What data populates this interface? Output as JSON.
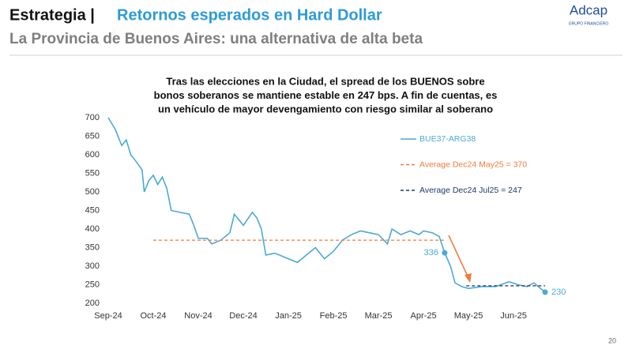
{
  "header": {
    "title_prefix": "Estrategia |",
    "title": "Retornos esperados en Hard Dollar",
    "subtitle": "La Provincia de Buenos Aires: una alternativa de alta beta",
    "logo": "Adcap",
    "logo_sub": "GRUPO FINANCIERO",
    "page": "20"
  },
  "chart_data": {
    "type": "line",
    "title": [
      "Tras las elecciones en la Ciudad, el spread de los BUENOS sobre",
      "bonos soberanos se mantiene estable en 247 bps. A fin de cuentas, es",
      "un vehículo de mayor devengamiento con riesgo similar al soberano"
    ],
    "xlim": [
      0,
      9.7
    ],
    "ylim": [
      200,
      700
    ],
    "xticks": [
      {
        "value": 0,
        "label": "Sep-24"
      },
      {
        "value": 1,
        "label": "Oct-24"
      },
      {
        "value": 2,
        "label": "Nov-24"
      },
      {
        "value": 3,
        "label": "Dec-24"
      },
      {
        "value": 4,
        "label": "Jan-25"
      },
      {
        "value": 5,
        "label": "Feb-25"
      },
      {
        "value": 6,
        "label": "Mar-25"
      },
      {
        "value": 7,
        "label": "Apr-25"
      },
      {
        "value": 8,
        "label": "May-25"
      },
      {
        "value": 9,
        "label": "Jun-25"
      }
    ],
    "yticks": [
      200,
      250,
      300,
      350,
      400,
      450,
      500,
      550,
      600,
      650,
      700
    ],
    "series": [
      {
        "name": "BUE37-ARG38",
        "color": "#4aa9d6",
        "dash": false,
        "x": [
          0,
          0.15,
          0.3,
          0.4,
          0.5,
          0.6,
          0.75,
          0.8,
          0.9,
          1.0,
          1.1,
          1.2,
          1.3,
          1.4,
          1.6,
          1.8,
          1.9,
          2.0,
          2.2,
          2.3,
          2.5,
          2.7,
          2.8,
          3.0,
          3.2,
          3.3,
          3.4,
          3.5,
          3.7,
          4.0,
          4.2,
          4.4,
          4.6,
          4.8,
          5.0,
          5.2,
          5.4,
          5.6,
          5.8,
          6.0,
          6.2,
          6.3,
          6.5,
          6.7,
          6.9,
          7.0,
          7.2,
          7.35,
          7.47,
          7.6,
          7.7,
          7.85,
          8.0,
          8.3,
          8.6,
          8.9,
          9.1,
          9.3,
          9.45,
          9.6,
          9.7
        ],
        "values": [
          700,
          670,
          625,
          640,
          600,
          585,
          560,
          500,
          530,
          545,
          520,
          540,
          510,
          450,
          445,
          440,
          410,
          375,
          375,
          360,
          370,
          390,
          440,
          410,
          445,
          430,
          400,
          330,
          335,
          320,
          310,
          330,
          350,
          320,
          340,
          370,
          385,
          395,
          390,
          385,
          360,
          400,
          385,
          395,
          385,
          395,
          390,
          380,
          336,
          300,
          255,
          245,
          240,
          245,
          245,
          258,
          250,
          245,
          255,
          240,
          230
        ]
      },
      {
        "name": "Average Dec24 May25 = 370",
        "color": "#f07a3c",
        "dash": true,
        "x": [
          1.0,
          7.5
        ],
        "values": [
          370,
          370
        ]
      },
      {
        "name": "Average Dec24 Jul25 = 247",
        "color": "#1f3864",
        "dash": true,
        "x": [
          7.95,
          9.7
        ],
        "values": [
          247,
          247
        ]
      }
    ],
    "highlights": [
      {
        "x": 7.47,
        "value": 336
      },
      {
        "x": 9.7,
        "value": 230
      }
    ]
  }
}
